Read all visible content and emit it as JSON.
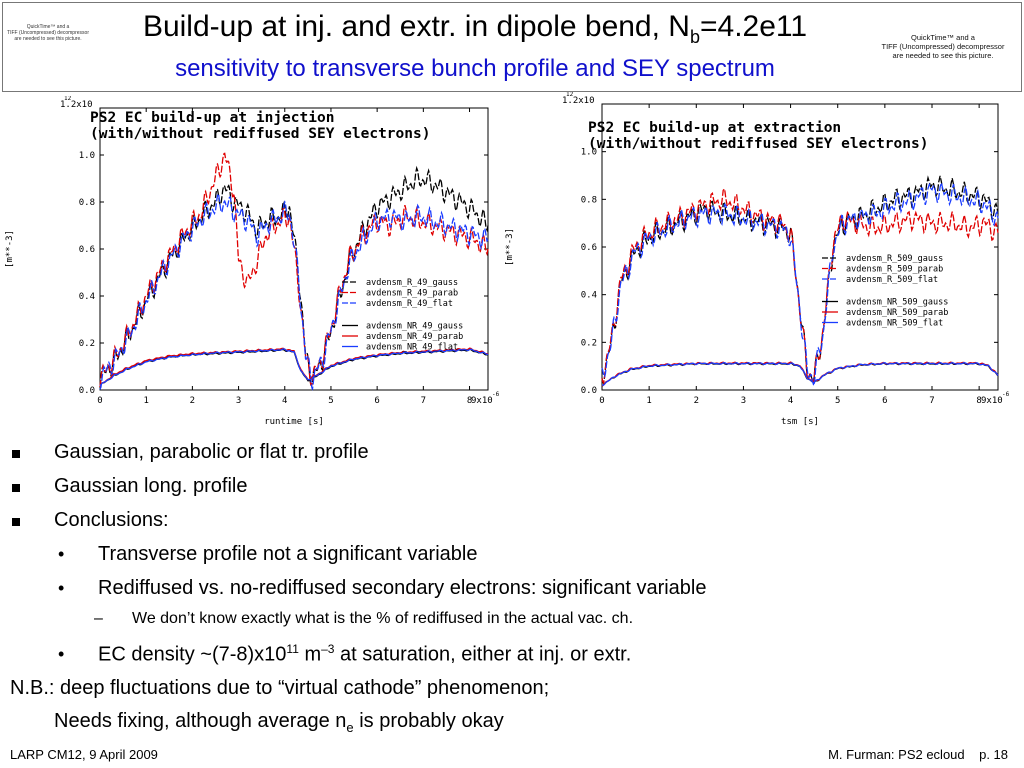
{
  "header": {
    "title_prefix": "Build-up at inj. and extr. in dipole bend, N",
    "title_sub": "b",
    "title_suffix": "=4.2e11",
    "subtitle": "sensitivity to transverse bunch profile and SEY spectrum",
    "placeholder_left_line1": "QuickTime™ and a",
    "placeholder_left_line2": "TIFF (Uncompressed) decompressor",
    "placeholder_left_line3": "are needed to see this picture.",
    "placeholder_right_line1": "QuickTime™ and a",
    "placeholder_right_line2": "TIFF (Uncompressed) decompressor",
    "placeholder_right_line3": "are needed to see this picture."
  },
  "chart_data": [
    {
      "type": "line",
      "title_line1": "PS2 EC build-up at injection",
      "title_line2": "(with/without rediffused SEY electrons)",
      "xlabel": "runtime [s]",
      "ylabel": "[m**-3]",
      "x_multiplier": "9x10",
      "x_exponent": "-6",
      "y_multiplier": "1.2x10",
      "y_exponent": "12",
      "xlim": [
        0,
        8.4
      ],
      "ylim": [
        0,
        1.2
      ],
      "x_ticks": [
        "0",
        "1",
        "2",
        "3",
        "4",
        "5",
        "6",
        "7",
        "8"
      ],
      "y_ticks": [
        "0.0",
        "0.2",
        "0.4",
        "0.6",
        "0.8",
        "1.0"
      ],
      "series": [
        {
          "name": "avdensm_R_49_gauss",
          "color": "#000000",
          "dash": "dash",
          "x": [
            0,
            0.3,
            0.6,
            1.0,
            1.4,
            1.8,
            2.2,
            2.5,
            2.7,
            2.9,
            3.2,
            3.4,
            3.6,
            3.9,
            4.1,
            4.3,
            4.45,
            4.6,
            4.8,
            5.0,
            5.2,
            5.4,
            5.7,
            6.0,
            6.3,
            6.6,
            6.9,
            7.2,
            7.5,
            7.8,
            8.1,
            8.4
          ],
          "y": [
            0.05,
            0.12,
            0.22,
            0.38,
            0.52,
            0.64,
            0.74,
            0.8,
            0.86,
            0.8,
            0.75,
            0.68,
            0.72,
            0.74,
            0.78,
            0.5,
            0.15,
            0.05,
            0.12,
            0.25,
            0.4,
            0.55,
            0.68,
            0.78,
            0.82,
            0.86,
            0.9,
            0.88,
            0.84,
            0.8,
            0.76,
            0.7
          ]
        },
        {
          "name": "avdensm_R_49_parab",
          "color": "#e00000",
          "dash": "dash",
          "x": [
            0,
            0.3,
            0.6,
            1.0,
            1.4,
            1.8,
            2.2,
            2.5,
            2.7,
            2.9,
            3.0,
            3.2,
            3.4,
            3.6,
            3.9,
            4.1,
            4.3,
            4.45,
            4.6,
            4.8,
            5.0,
            5.2,
            5.4,
            5.7,
            6.0,
            6.3,
            6.6,
            6.9,
            7.2,
            7.5,
            7.8,
            8.1,
            8.4
          ],
          "y": [
            0.05,
            0.13,
            0.23,
            0.4,
            0.54,
            0.66,
            0.76,
            0.9,
            1.0,
            0.85,
            0.55,
            0.45,
            0.55,
            0.66,
            0.72,
            0.74,
            0.45,
            0.14,
            0.05,
            0.13,
            0.26,
            0.42,
            0.56,
            0.66,
            0.72,
            0.7,
            0.74,
            0.72,
            0.7,
            0.68,
            0.66,
            0.64,
            0.6
          ]
        },
        {
          "name": "avdensm_R_49_flat",
          "color": "#1a3cff",
          "dash": "dash",
          "x": [
            0,
            0.3,
            0.6,
            1.0,
            1.4,
            1.8,
            2.2,
            2.5,
            2.7,
            2.9,
            3.2,
            3.4,
            3.6,
            3.9,
            4.1,
            4.3,
            4.45,
            4.6,
            4.8,
            5.0,
            5.2,
            5.4,
            5.7,
            6.0,
            6.3,
            6.6,
            6.9,
            7.2,
            7.5,
            7.8,
            8.1,
            8.4
          ],
          "y": [
            0.05,
            0.12,
            0.22,
            0.38,
            0.52,
            0.64,
            0.73,
            0.78,
            0.8,
            0.76,
            0.72,
            0.66,
            0.7,
            0.74,
            0.76,
            0.48,
            0.14,
            0.05,
            0.12,
            0.25,
            0.4,
            0.54,
            0.64,
            0.72,
            0.74,
            0.72,
            0.74,
            0.72,
            0.7,
            0.68,
            0.66,
            0.64
          ]
        },
        {
          "name": "avdensm_NR_49_gauss",
          "color": "#000000",
          "dash": "solid",
          "x": [
            0,
            0.3,
            0.6,
            1.0,
            1.5,
            2.0,
            2.5,
            3.0,
            3.5,
            4.0,
            4.2,
            4.35,
            4.5,
            4.7,
            5.0,
            5.5,
            6.0,
            6.5,
            7.0,
            7.5,
            8.0,
            8.4
          ],
          "y": [
            0.02,
            0.06,
            0.09,
            0.12,
            0.14,
            0.15,
            0.155,
            0.16,
            0.165,
            0.17,
            0.16,
            0.08,
            0.04,
            0.06,
            0.1,
            0.13,
            0.145,
            0.155,
            0.16,
            0.165,
            0.17,
            0.15
          ]
        },
        {
          "name": "avdensm_NR_49_parab",
          "color": "#e00000",
          "dash": "solid",
          "x": [
            0,
            0.3,
            0.6,
            1.0,
            1.5,
            2.0,
            2.5,
            3.0,
            3.5,
            4.0,
            4.2,
            4.35,
            4.5,
            4.7,
            5.0,
            5.5,
            6.0,
            6.5,
            7.0,
            7.5,
            8.0,
            8.4
          ],
          "y": [
            0.02,
            0.065,
            0.095,
            0.125,
            0.145,
            0.155,
            0.16,
            0.165,
            0.17,
            0.175,
            0.165,
            0.085,
            0.045,
            0.065,
            0.105,
            0.135,
            0.15,
            0.16,
            0.165,
            0.17,
            0.175,
            0.155
          ]
        },
        {
          "name": "avdensm_NR_49_flat",
          "color": "#1a3cff",
          "dash": "solid",
          "x": [
            0,
            0.3,
            0.6,
            1.0,
            1.5,
            2.0,
            2.5,
            3.0,
            3.5,
            4.0,
            4.2,
            4.35,
            4.5,
            4.7,
            5.0,
            5.5,
            6.0,
            6.5,
            7.0,
            7.5,
            8.0,
            8.4
          ],
          "y": [
            0.02,
            0.06,
            0.09,
            0.12,
            0.14,
            0.15,
            0.158,
            0.162,
            0.167,
            0.172,
            0.162,
            0.082,
            0.042,
            0.062,
            0.102,
            0.132,
            0.147,
            0.157,
            0.162,
            0.167,
            0.172,
            0.152
          ]
        }
      ],
      "legend_placement": "center-right"
    },
    {
      "type": "line",
      "title_line1": "PS2 EC build-up at extraction",
      "title_line2": "(with/without rediffused SEY electrons)",
      "xlabel": "tsm [s]",
      "ylabel": "[m**-3]",
      "x_multiplier": "9x10",
      "x_exponent": "-6",
      "y_multiplier": "1.2x10",
      "y_exponent": "12",
      "xlim": [
        0,
        8.4
      ],
      "ylim": [
        0,
        1.2
      ],
      "x_ticks": [
        "0",
        "1",
        "2",
        "3",
        "4",
        "5",
        "6",
        "7",
        "8"
      ],
      "y_ticks": [
        "0.0",
        "0.2",
        "0.4",
        "0.6",
        "0.8",
        "1.0"
      ],
      "series": [
        {
          "name": "avdensm_R_509_gauss",
          "color": "#000000",
          "dash": "dash",
          "x": [
            0,
            0.2,
            0.4,
            0.7,
            1.0,
            1.4,
            1.8,
            2.2,
            2.6,
            3.0,
            3.4,
            3.8,
            4.0,
            4.2,
            4.35,
            4.5,
            4.7,
            4.9,
            5.1,
            5.4,
            5.8,
            6.2,
            6.6,
            7.0,
            7.4,
            7.8,
            8.1,
            8.4
          ],
          "y": [
            0.05,
            0.2,
            0.45,
            0.58,
            0.64,
            0.68,
            0.72,
            0.76,
            0.74,
            0.72,
            0.7,
            0.68,
            0.66,
            0.35,
            0.08,
            0.05,
            0.25,
            0.6,
            0.7,
            0.72,
            0.76,
            0.8,
            0.82,
            0.86,
            0.84,
            0.82,
            0.8,
            0.74
          ]
        },
        {
          "name": "avdensm_R_509_parab",
          "color": "#e00000",
          "dash": "dash",
          "x": [
            0,
            0.2,
            0.4,
            0.7,
            1.0,
            1.4,
            1.8,
            2.2,
            2.6,
            3.0,
            3.4,
            3.8,
            4.0,
            4.2,
            4.35,
            4.5,
            4.7,
            4.9,
            5.1,
            5.4,
            5.8,
            6.2,
            6.6,
            7.0,
            7.4,
            7.8,
            8.1,
            8.4
          ],
          "y": [
            0.05,
            0.21,
            0.46,
            0.6,
            0.66,
            0.7,
            0.74,
            0.78,
            0.8,
            0.76,
            0.72,
            0.7,
            0.66,
            0.34,
            0.08,
            0.05,
            0.26,
            0.62,
            0.72,
            0.7,
            0.68,
            0.7,
            0.72,
            0.7,
            0.7,
            0.68,
            0.7,
            0.66
          ]
        },
        {
          "name": "avdensm_R_509_flat",
          "color": "#1a3cff",
          "dash": "dash",
          "x": [
            0,
            0.2,
            0.4,
            0.7,
            1.0,
            1.4,
            1.8,
            2.2,
            2.6,
            3.0,
            3.4,
            3.8,
            4.0,
            4.2,
            4.35,
            4.5,
            4.7,
            4.9,
            5.1,
            5.4,
            5.8,
            6.2,
            6.6,
            7.0,
            7.4,
            7.8,
            8.1,
            8.4
          ],
          "y": [
            0.05,
            0.2,
            0.44,
            0.58,
            0.64,
            0.68,
            0.72,
            0.74,
            0.74,
            0.72,
            0.7,
            0.68,
            0.65,
            0.34,
            0.08,
            0.05,
            0.25,
            0.6,
            0.7,
            0.72,
            0.74,
            0.78,
            0.8,
            0.84,
            0.82,
            0.8,
            0.78,
            0.72
          ]
        },
        {
          "name": "avdensm_NR_509_gauss",
          "color": "#000000",
          "dash": "solid",
          "x": [
            0,
            0.3,
            0.6,
            1.0,
            1.5,
            2.0,
            2.5,
            3.0,
            3.5,
            4.0,
            4.2,
            4.35,
            4.5,
            4.7,
            5.0,
            5.5,
            6.0,
            6.5,
            7.0,
            7.5,
            8.0,
            8.2,
            8.4
          ],
          "y": [
            0.02,
            0.06,
            0.085,
            0.1,
            0.105,
            0.11,
            0.11,
            0.11,
            0.11,
            0.11,
            0.1,
            0.05,
            0.03,
            0.06,
            0.09,
            0.105,
            0.11,
            0.11,
            0.11,
            0.11,
            0.11,
            0.1,
            0.06
          ]
        },
        {
          "name": "avdensm_NR_509_parab",
          "color": "#e00000",
          "dash": "solid",
          "x": [
            0,
            0.3,
            0.6,
            1.0,
            1.5,
            2.0,
            2.5,
            3.0,
            3.5,
            4.0,
            4.2,
            4.35,
            4.5,
            4.7,
            5.0,
            5.5,
            6.0,
            6.5,
            7.0,
            7.5,
            8.0,
            8.2,
            8.4
          ],
          "y": [
            0.02,
            0.062,
            0.088,
            0.103,
            0.108,
            0.112,
            0.113,
            0.113,
            0.113,
            0.113,
            0.103,
            0.052,
            0.032,
            0.062,
            0.092,
            0.107,
            0.112,
            0.113,
            0.113,
            0.113,
            0.113,
            0.103,
            0.062
          ]
        },
        {
          "name": "avdensm_NR_509_flat",
          "color": "#1a3cff",
          "dash": "solid",
          "x": [
            0,
            0.3,
            0.6,
            1.0,
            1.5,
            2.0,
            2.5,
            3.0,
            3.5,
            4.0,
            4.2,
            4.35,
            4.5,
            4.7,
            5.0,
            5.5,
            6.0,
            6.5,
            7.0,
            7.5,
            8.0,
            8.2,
            8.4
          ],
          "y": [
            0.02,
            0.06,
            0.086,
            0.101,
            0.106,
            0.111,
            0.111,
            0.111,
            0.111,
            0.111,
            0.101,
            0.051,
            0.031,
            0.061,
            0.091,
            0.106,
            0.111,
            0.111,
            0.111,
            0.111,
            0.111,
            0.101,
            0.061
          ]
        }
      ],
      "legend_placement": "center-right"
    }
  ],
  "bullets": {
    "b1": "Gaussian, parabolic or flat tr. profile",
    "b2": "Gaussian long. profile",
    "b3": "Conclusions:",
    "c1": "Transverse profile not a significant variable",
    "c2": "Rediffused vs. no-rediffused secondary electrons: significant variable",
    "d1": "We don’t know exactly what is the % of rediffused in the actual vac. ch.",
    "c3_prefix": "EC density ~(7-8)x10",
    "c3_exp": "11",
    "c3_mid": " m",
    "c3_exp2": "–3",
    "c3_suffix": " at saturation, either at inj. or extr.",
    "nb_line1": "N.B.: deep fluctuations due to “virtual cathode” phenomenon;",
    "nb_line2_prefix": "Needs fixing, although average n",
    "nb_line2_sub": "e",
    "nb_line2_suffix": " is probably okay",
    "bullet_dot": "•",
    "bullet_dash": "–"
  },
  "footer": {
    "left": "LARP CM12, 9 April 2009",
    "right": "M. Furman: PS2 ecloud    p. 18"
  }
}
